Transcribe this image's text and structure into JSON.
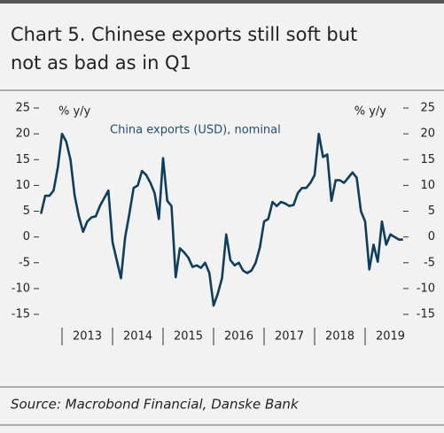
{
  "chart_data": {
    "type": "line",
    "title_lines": [
      "Chart 5. Chinese exports still soft but",
      "not as bad as in Q1"
    ],
    "y_label": "% y/y",
    "y2_label": "% y/y",
    "source": "Source: Macrobond Financial, Danske Bank",
    "x": [
      2012.583,
      2012.667,
      2012.75,
      2012.833,
      2012.917,
      2013.0,
      2013.083,
      2013.167,
      2013.25,
      2013.333,
      2013.417,
      2013.5,
      2013.583,
      2013.667,
      2013.75,
      2013.833,
      2013.917,
      2014.0,
      2014.083,
      2014.167,
      2014.25,
      2014.333,
      2014.417,
      2014.5,
      2014.583,
      2014.667,
      2014.75,
      2014.833,
      2014.917,
      2015.0,
      2015.083,
      2015.167,
      2015.25,
      2015.333,
      2015.417,
      2015.5,
      2015.583,
      2015.667,
      2015.75,
      2015.833,
      2015.917,
      2016.0,
      2016.083,
      2016.167,
      2016.25,
      2016.333,
      2016.417,
      2016.5,
      2016.583,
      2016.667,
      2016.75,
      2016.833,
      2016.917,
      2017.0,
      2017.083,
      2017.167,
      2017.25,
      2017.333,
      2017.417,
      2017.5,
      2017.583,
      2017.667,
      2017.75,
      2017.833,
      2017.917,
      2018.0,
      2018.083,
      2018.167,
      2018.25,
      2018.333,
      2018.417,
      2018.5,
      2018.583,
      2018.667,
      2018.75,
      2018.833,
      2018.917,
      2019.0,
      2019.083,
      2019.167,
      2019.25,
      2019.333,
      2019.417,
      2019.5,
      2019.583,
      2019.667,
      2019.75
    ],
    "series": [
      {
        "name": "China exports (USD), nominal",
        "color": "#0e3d5e",
        "values": [
          4.5,
          8,
          8,
          9,
          13.5,
          20,
          18.5,
          15,
          8,
          4,
          1,
          3,
          3.8,
          4,
          6,
          7.5,
          9,
          -1,
          -4.5,
          -8,
          0,
          4.5,
          9.5,
          10,
          12.8,
          12,
          10.5,
          8.5,
          3.5,
          15.3,
          7,
          6,
          -7.8,
          -2.2,
          -3,
          -4,
          -5.8,
          -5.5,
          -6,
          -5,
          -7,
          -13.3,
          -11,
          -8,
          0.5,
          -4.5,
          -5.5,
          -5,
          -6.5,
          -7,
          -6.5,
          -5,
          -2,
          3,
          3.5,
          6.8,
          6,
          6.8,
          6.5,
          6,
          6.2,
          8.5,
          9.5,
          9.5,
          10.5,
          12,
          20,
          15.5,
          16,
          7,
          11,
          11,
          10.5,
          11.5,
          12.5,
          11.5,
          5,
          3,
          -6.3,
          -1.5,
          -4.8,
          3,
          -1.5,
          0.5,
          0,
          -0.5,
          -0.5
        ]
      }
    ],
    "xlim": [
      2012.5,
      2019.8
    ],
    "xticks": [
      {
        "value": 2013.5,
        "label": "2013"
      },
      {
        "value": 2014.5,
        "label": "2014"
      },
      {
        "value": 2015.5,
        "label": "2015"
      },
      {
        "value": 2016.5,
        "label": "2016"
      },
      {
        "value": 2017.5,
        "label": "2017"
      },
      {
        "value": 2018.5,
        "label": "2018"
      },
      {
        "value": 2019.5,
        "label": "2019"
      }
    ],
    "ylim": [
      -15,
      25
    ],
    "yticks": [
      -15,
      -10,
      -5,
      0,
      5,
      10,
      15,
      20,
      25
    ],
    "y2lim": [
      -15,
      25
    ],
    "y2ticks": [
      -15,
      -10,
      -5,
      0,
      5,
      10,
      15,
      20,
      25
    ]
  }
}
